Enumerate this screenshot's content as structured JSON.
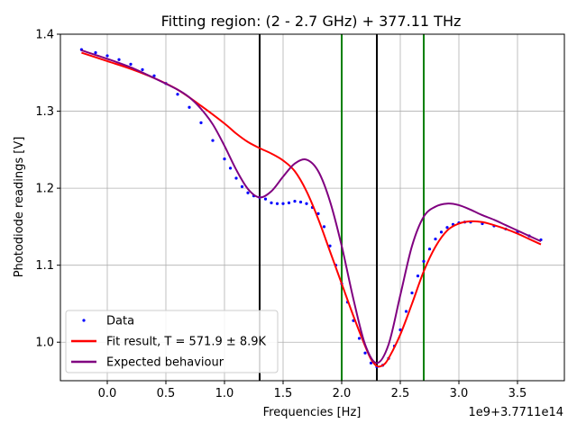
{
  "chart_data": {
    "type": "line",
    "title": "Fitting region: (2 - 2.7 GHz) + 377.11 THz",
    "xlabel": "Frequencies [Hz]",
    "ylabel": "Photodiode readings [V]",
    "x_offset_label": "1e9+3.7711e14",
    "xlim": [
      -0.4,
      3.9
    ],
    "ylim": [
      0.95,
      1.4
    ],
    "xticks": [
      0.0,
      0.5,
      1.0,
      1.5,
      2.0,
      2.5,
      3.0,
      3.5
    ],
    "xtick_labels": [
      "0.0",
      "0.5",
      "1.0",
      "1.5",
      "2.0",
      "2.5",
      "3.0",
      "3.5"
    ],
    "yticks": [
      1.0,
      1.1,
      1.2,
      1.3,
      1.4
    ],
    "ytick_labels": [
      "1.0",
      "1.1",
      "1.2",
      "1.3",
      "1.4"
    ],
    "grid": true,
    "legend_position": "lower-left",
    "vertical_lines": [
      {
        "x": 1.3,
        "color": "#000000"
      },
      {
        "x": 2.3,
        "color": "#000000"
      },
      {
        "x": 2.0,
        "color": "#008000"
      },
      {
        "x": 2.7,
        "color": "#008000"
      }
    ],
    "series": [
      {
        "name": "Data",
        "style": "points",
        "color": "#0000ff",
        "x": [
          -0.22,
          -0.1,
          0.0,
          0.1,
          0.2,
          0.3,
          0.4,
          0.5,
          0.6,
          0.7,
          0.8,
          0.9,
          1.0,
          1.05,
          1.1,
          1.15,
          1.2,
          1.25,
          1.3,
          1.35,
          1.4,
          1.45,
          1.5,
          1.55,
          1.6,
          1.65,
          1.7,
          1.75,
          1.8,
          1.85,
          1.9,
          1.95,
          2.0,
          2.05,
          2.1,
          2.15,
          2.2,
          2.25,
          2.3,
          2.35,
          2.4,
          2.45,
          2.5,
          2.55,
          2.6,
          2.65,
          2.7,
          2.75,
          2.8,
          2.85,
          2.9,
          2.95,
          3.0,
          3.05,
          3.1,
          3.2,
          3.3,
          3.4,
          3.5,
          3.6,
          3.7
        ],
        "y": [
          1.38,
          1.376,
          1.372,
          1.367,
          1.361,
          1.354,
          1.346,
          1.336,
          1.322,
          1.305,
          1.285,
          1.262,
          1.238,
          1.226,
          1.213,
          1.202,
          1.194,
          1.19,
          1.188,
          1.186,
          1.181,
          1.18,
          1.18,
          1.181,
          1.183,
          1.182,
          1.18,
          1.175,
          1.167,
          1.15,
          1.125,
          1.1,
          1.076,
          1.052,
          1.028,
          1.005,
          0.986,
          0.973,
          0.968,
          0.97,
          0.979,
          0.995,
          1.016,
          1.04,
          1.064,
          1.086,
          1.105,
          1.121,
          1.134,
          1.143,
          1.149,
          1.153,
          1.155,
          1.156,
          1.156,
          1.154,
          1.151,
          1.147,
          1.143,
          1.138,
          1.133
        ]
      },
      {
        "name": "Fit result, T = 571.9 ± 8.9K",
        "style": "line",
        "color": "#ff0000",
        "x": [
          -0.22,
          0.0,
          0.2,
          0.4,
          0.6,
          0.8,
          1.0,
          1.1,
          1.2,
          1.3,
          1.4,
          1.5,
          1.6,
          1.7,
          1.8,
          1.9,
          2.0,
          2.1,
          2.2,
          2.25,
          2.3,
          2.35,
          2.4,
          2.5,
          2.6,
          2.7,
          2.8,
          2.9,
          3.0,
          3.1,
          3.2,
          3.3,
          3.4,
          3.5,
          3.6,
          3.7
        ],
        "y": [
          1.376,
          1.365,
          1.355,
          1.343,
          1.328,
          1.307,
          1.284,
          1.271,
          1.26,
          1.252,
          1.245,
          1.236,
          1.222,
          1.196,
          1.16,
          1.118,
          1.076,
          1.034,
          0.995,
          0.978,
          0.969,
          0.97,
          0.979,
          1.01,
          1.05,
          1.092,
          1.124,
          1.145,
          1.154,
          1.157,
          1.156,
          1.152,
          1.147,
          1.141,
          1.134,
          1.127
        ]
      },
      {
        "name": "Expected behaviour",
        "style": "line",
        "color": "#800080",
        "x": [
          -0.22,
          0.0,
          0.2,
          0.4,
          0.6,
          0.7,
          0.8,
          0.9,
          1.0,
          1.1,
          1.2,
          1.3,
          1.4,
          1.5,
          1.6,
          1.7,
          1.8,
          1.9,
          2.0,
          2.1,
          2.2,
          2.3,
          2.4,
          2.5,
          2.6,
          2.7,
          2.8,
          2.9,
          3.0,
          3.1,
          3.2,
          3.3,
          3.4,
          3.5,
          3.6,
          3.7
        ],
        "y": [
          1.379,
          1.368,
          1.357,
          1.343,
          1.328,
          1.318,
          1.303,
          1.283,
          1.255,
          1.224,
          1.199,
          1.188,
          1.196,
          1.215,
          1.232,
          1.237,
          1.222,
          1.183,
          1.125,
          1.056,
          0.997,
          0.973,
          0.997,
          1.061,
          1.125,
          1.163,
          1.176,
          1.18,
          1.178,
          1.172,
          1.165,
          1.159,
          1.152,
          1.145,
          1.138,
          1.131
        ]
      }
    ]
  }
}
